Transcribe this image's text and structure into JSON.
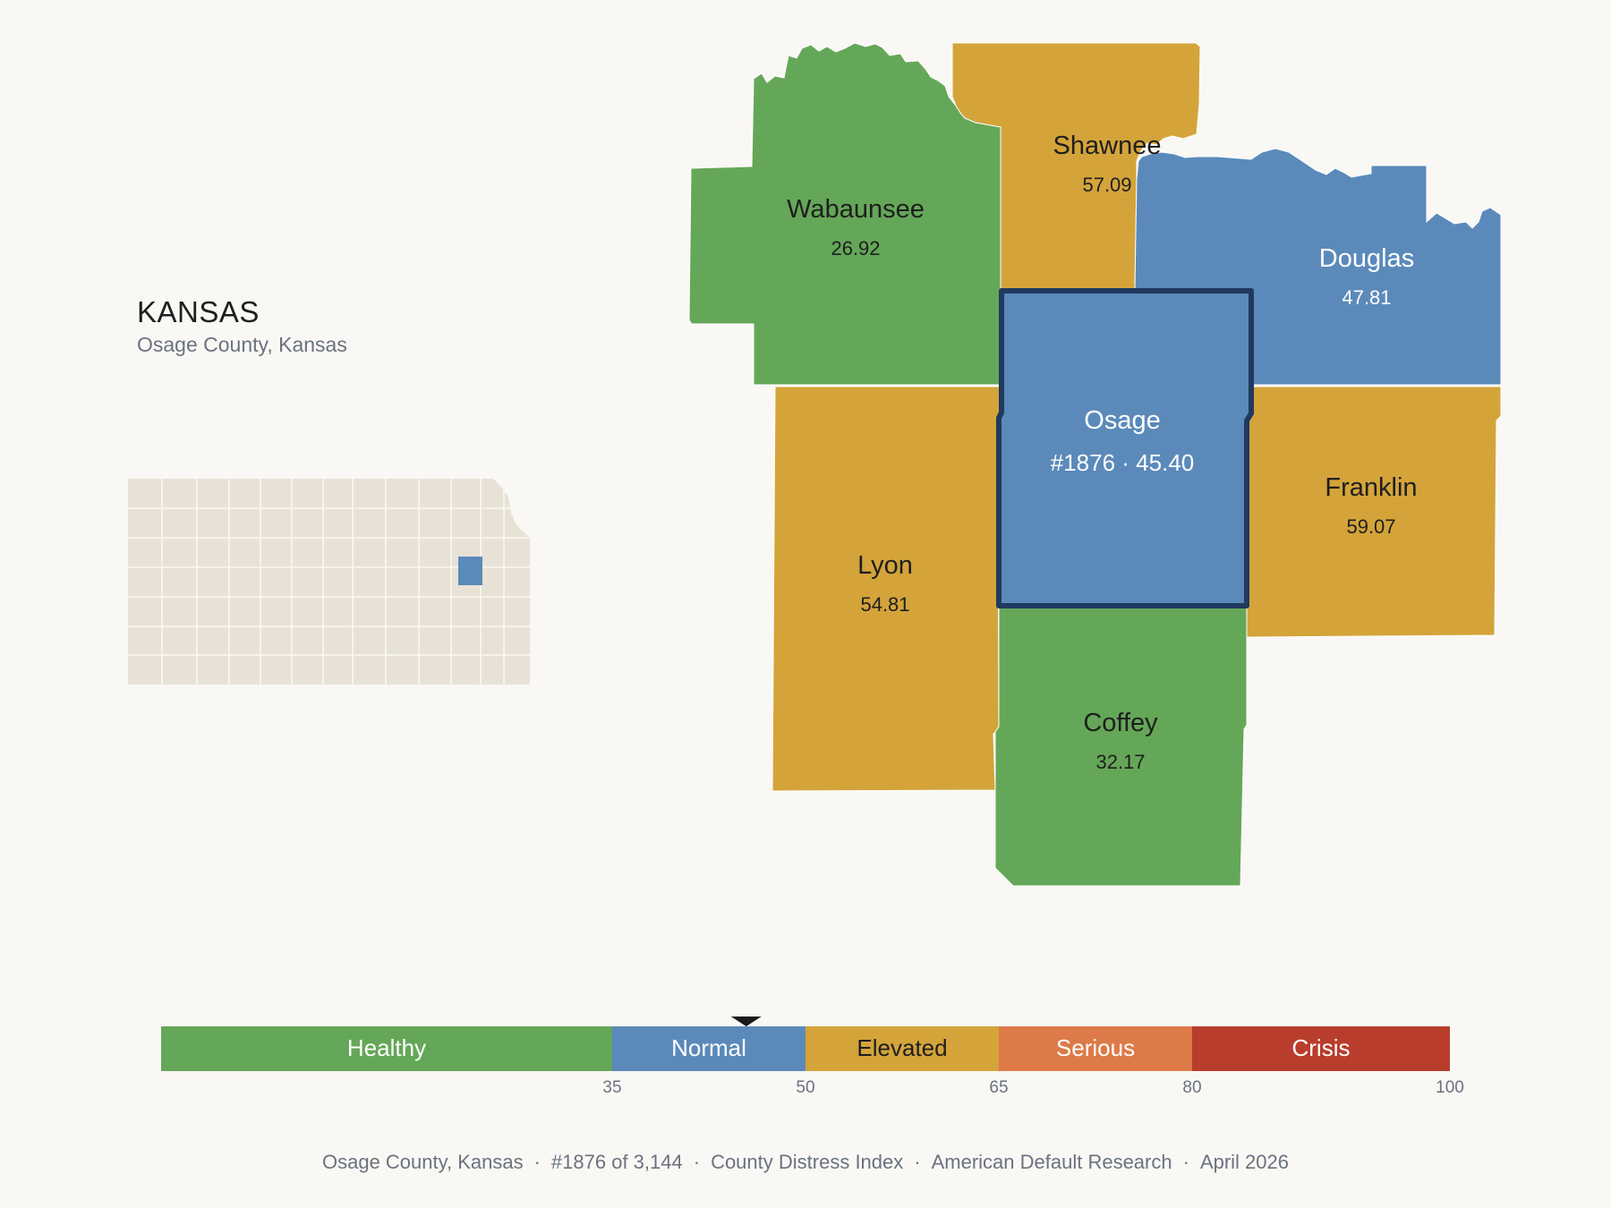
{
  "header": {
    "state": "KANSAS",
    "subtitle": "Osage County, Kansas"
  },
  "colors": {
    "healthy": "#65a758",
    "normal": "#5b8aba",
    "elevated": "#d4a43a",
    "serious": "#dd7a48",
    "crisis": "#b83d2c",
    "outline": "#1f3a5f",
    "locator_base": "#e8e2d6"
  },
  "counties": {
    "wabaunsee": {
      "name": "Wabaunsee",
      "value": "26.92",
      "category": "healthy"
    },
    "shawnee": {
      "name": "Shawnee",
      "value": "57.09",
      "category": "elevated"
    },
    "douglas": {
      "name": "Douglas",
      "value": "47.81",
      "category": "normal"
    },
    "osage": {
      "name": "Osage",
      "value": "#1876 · 45.40",
      "category": "normal",
      "selected": true
    },
    "franklin": {
      "name": "Franklin",
      "value": "59.07",
      "category": "elevated"
    },
    "lyon": {
      "name": "Lyon",
      "value": "54.81",
      "category": "elevated"
    },
    "coffey": {
      "name": "Coffey",
      "value": "32.17",
      "category": "healthy"
    }
  },
  "legend": {
    "bands": [
      {
        "label": "Healthy",
        "from": 0,
        "to": 35,
        "color": "#65a758",
        "text_color": "#ffffff"
      },
      {
        "label": "Normal",
        "from": 35,
        "to": 50,
        "color": "#5b8aba",
        "text_color": "#ffffff"
      },
      {
        "label": "Elevated",
        "from": 50,
        "to": 65,
        "color": "#d4a43a",
        "text_color": "#1e1e1e"
      },
      {
        "label": "Serious",
        "from": 65,
        "to": 80,
        "color": "#dd7a48",
        "text_color": "#ffffff"
      },
      {
        "label": "Crisis",
        "from": 80,
        "to": 100,
        "color": "#b83d2c",
        "text_color": "#ffffff"
      }
    ],
    "ticks": [
      "35",
      "50",
      "65",
      "80",
      "100"
    ],
    "marker_value": 45.4
  },
  "footer": {
    "county": "Osage County, Kansas",
    "rank": "#1876 of 3,144",
    "index": "County Distress Index",
    "source": "American Default Research",
    "date": "April 2026"
  }
}
